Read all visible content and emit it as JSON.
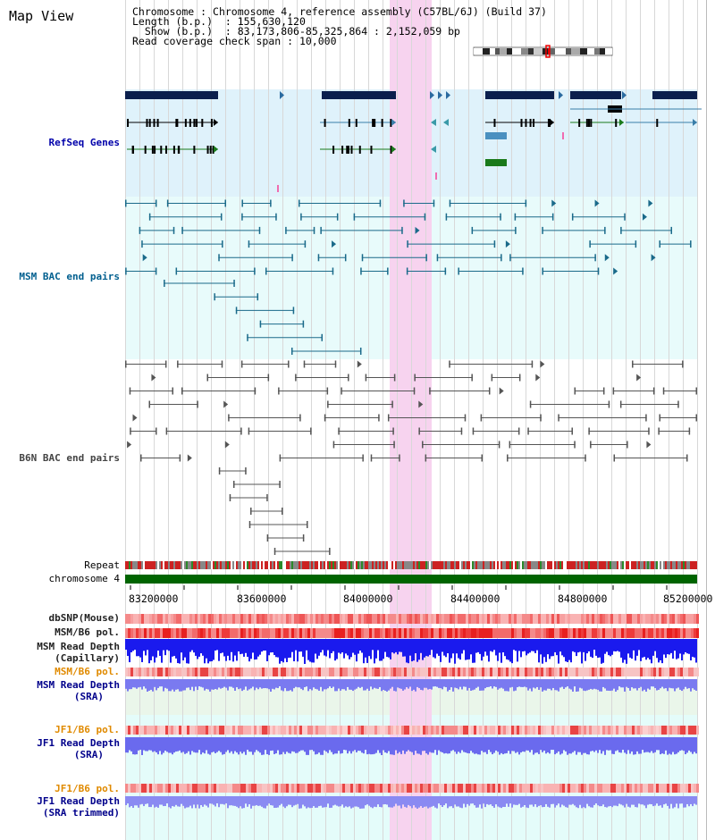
{
  "panel_title": "Map View",
  "info": {
    "chromosome_label": "Chromosome",
    "chromosome_value": "Chromosome 4, reference assembly (C57BL/6J) (Build 37)",
    "length_label": "Length (b.p.)",
    "length_value": "155,630,120",
    "show_label": "Show (b.p.)",
    "show_value": "83,173,806-85,325,864 : 2,152,059 bp",
    "span_label": "Read coverage check span",
    "span_value": "10,000"
  },
  "tracks": {
    "refseq": "RefSeq Genes",
    "msm_bac": "MSM BAC end pairs",
    "b6n_bac": "B6N BAC end pairs",
    "repeat": "Repeat",
    "chromosome": "chromosome 4",
    "dbsnp": "dbSNP(Mouse)",
    "msm_b6_pol": "MSM/B6 pol.",
    "msm_depth_cap_1": "MSM Read Depth",
    "msm_depth_cap_2": "(Capillary)",
    "msm_b6_pol_2": "MSM/B6 pol.",
    "msm_depth_sra_1": "MSM Read Depth",
    "msm_depth_sra_2": "(SRA)",
    "jf1_pol_1": "JF1/B6 pol.",
    "jf1_depth_sra_1": "JF1 Read Depth",
    "jf1_depth_sra_2": "(SRA)",
    "jf1_pol_2": "JF1/B6 pol.",
    "jf1_depth_trim_1": "JF1 Read Depth",
    "jf1_depth_trim_2": "(SRA trimmed)"
  },
  "axis_ticks": [
    "83200000",
    "83600000",
    "84000000",
    "84400000",
    "84800000",
    "85200000"
  ],
  "colors": {
    "refseq_bg": "#dff2fb",
    "bac_bg": "#e8fbfb",
    "highlight": "#f7d3ef",
    "refseq_label": "#00008b",
    "msm_label": "#005f8f",
    "b6n_label": "#333333",
    "pol_orange": "#e08a00",
    "depth_blue": "#00008b",
    "chromosome_green": "#006400"
  }
}
